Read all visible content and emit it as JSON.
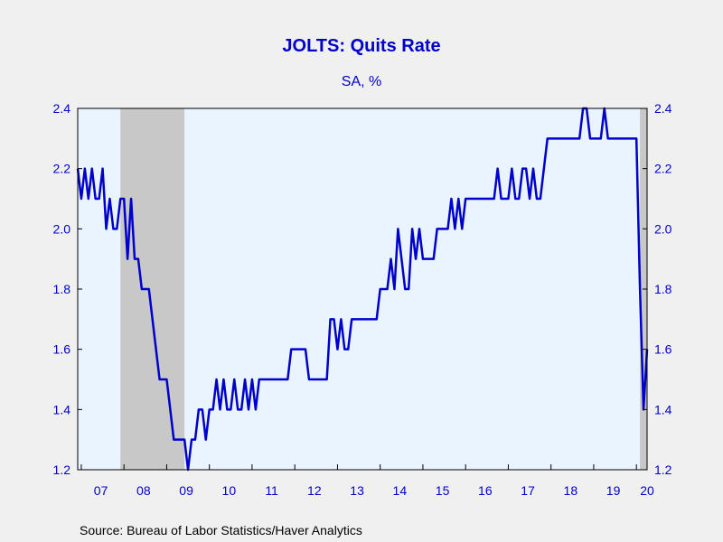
{
  "chart_data": {
    "type": "line",
    "title": "JOLTS: Quits Rate",
    "subtitle": "SA, %",
    "source": "Source:  Bureau of Labor Statistics/Haver Analytics",
    "x_start": "2006-12",
    "x_end": "2020-04",
    "ylim": [
      1.2,
      2.4
    ],
    "yticks": [
      1.2,
      1.4,
      1.6,
      1.8,
      2.0,
      2.2,
      2.4
    ],
    "ytick_labels": [
      "1.2",
      "1.4",
      "1.6",
      "1.8",
      "2.0",
      "2.2",
      "2.4"
    ],
    "xtick_labels": [
      "07",
      "08",
      "09",
      "10",
      "11",
      "12",
      "13",
      "14",
      "15",
      "16",
      "17",
      "18",
      "19",
      "20"
    ],
    "recessions": [
      {
        "start": "2007-12",
        "end": "2009-06"
      },
      {
        "start": "2020-02",
        "end": "2020-04"
      }
    ],
    "colors": {
      "line": "#0000cc",
      "plot_bg": "#eaf4ff",
      "recession": "#c8c8c8",
      "text": "#0000cc"
    },
    "grid": false,
    "series": [
      {
        "start": "2006-12",
        "values": [
          2.2,
          2.1,
          2.2,
          2.1,
          2.2,
          2.1,
          2.1,
          2.2,
          2.0,
          2.1,
          2.0,
          2.0,
          2.1,
          2.1,
          1.9,
          2.1,
          1.9,
          1.9,
          1.8,
          1.8,
          1.8,
          1.7,
          1.6,
          1.5,
          1.5,
          1.5,
          1.4,
          1.3,
          1.3,
          1.3,
          1.3,
          1.2,
          1.3,
          1.3,
          1.4,
          1.4,
          1.3,
          1.4,
          1.4,
          1.5,
          1.4,
          1.5,
          1.4,
          1.4,
          1.5,
          1.4,
          1.4,
          1.5,
          1.4,
          1.5,
          1.4,
          1.5,
          1.5,
          1.5,
          1.5,
          1.5,
          1.5,
          1.5,
          1.5,
          1.5,
          1.6,
          1.6,
          1.6,
          1.6,
          1.6,
          1.5,
          1.5,
          1.5,
          1.5,
          1.5,
          1.5,
          1.7,
          1.7,
          1.6,
          1.7,
          1.6,
          1.6,
          1.7,
          1.7,
          1.7,
          1.7,
          1.7,
          1.7,
          1.7,
          1.7,
          1.8,
          1.8,
          1.8,
          1.9,
          1.8,
          2.0,
          1.9,
          1.8,
          1.8,
          2.0,
          1.9,
          2.0,
          1.9,
          1.9,
          1.9,
          1.9,
          2.0,
          2.0,
          2.0,
          2.0,
          2.1,
          2.0,
          2.1,
          2.0,
          2.1,
          2.1,
          2.1,
          2.1,
          2.1,
          2.1,
          2.1,
          2.1,
          2.1,
          2.2,
          2.1,
          2.1,
          2.1,
          2.2,
          2.1,
          2.1,
          2.2,
          2.2,
          2.1,
          2.2,
          2.1,
          2.1,
          2.2,
          2.3,
          2.3,
          2.3,
          2.3,
          2.3,
          2.3,
          2.3,
          2.3,
          2.3,
          2.3,
          2.4,
          2.4,
          2.3,
          2.3,
          2.3,
          2.3,
          2.4,
          2.3,
          2.3,
          2.3,
          2.3,
          2.3,
          2.3,
          2.3,
          2.3,
          2.3,
          1.8,
          1.4,
          1.6
        ]
      }
    ]
  }
}
